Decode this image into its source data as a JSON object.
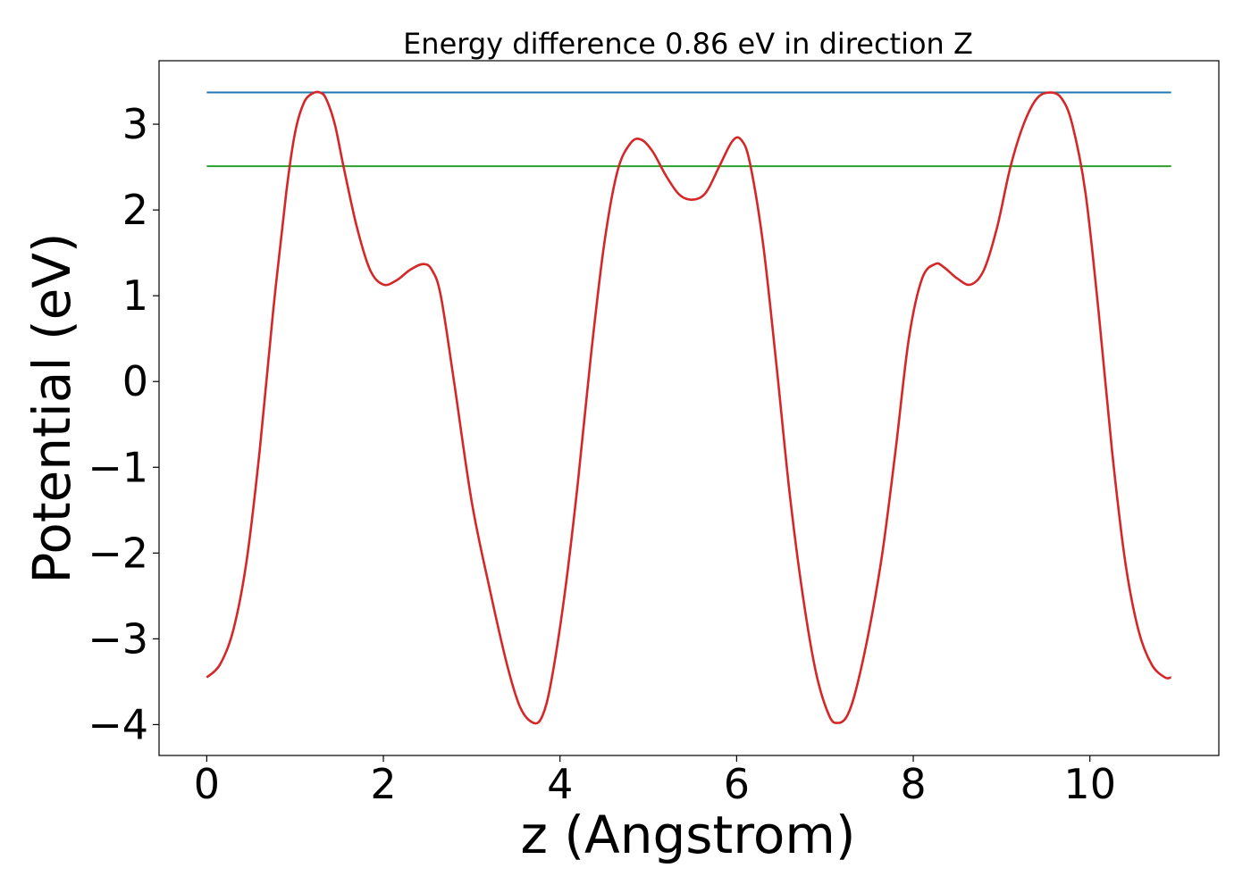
{
  "chart_data": {
    "type": "line",
    "title": "Energy difference 0.86 eV in direction Z",
    "xlabel": "z (Angstrom)",
    "ylabel": "Potential (eV)",
    "xlim": [
      -0.54,
      11.46
    ],
    "ylim": [
      -4.36,
      3.74
    ],
    "xticks": [
      0,
      2,
      4,
      6,
      8,
      10
    ],
    "xtick_labels": [
      "0",
      "2",
      "4",
      "6",
      "8",
      "10"
    ],
    "yticks": [
      -4,
      -3,
      -2,
      -1,
      0,
      1,
      2,
      3
    ],
    "ytick_labels": [
      "−4",
      "−3",
      "−2",
      "−1",
      "0",
      "1",
      "2",
      "3"
    ],
    "grid": false,
    "series": [
      {
        "color": "#d62728",
        "x": [
          0,
          0.15,
          0.3,
          0.45,
          0.6,
          0.75,
          0.9,
          1.0,
          1.1,
          1.2,
          1.28,
          1.35,
          1.45,
          1.55,
          1.7,
          1.85,
          2.0,
          2.15,
          2.3,
          2.45,
          2.55,
          2.65,
          2.8,
          3.0,
          3.2,
          3.4,
          3.55,
          3.7,
          3.8,
          3.9,
          4.05,
          4.2,
          4.35,
          4.5,
          4.65,
          4.8,
          4.92,
          5.05,
          5.2,
          5.35,
          5.5,
          5.65,
          5.8,
          5.95,
          6.05,
          6.15,
          6.3,
          6.45,
          6.6,
          6.75,
          6.9,
          7.05,
          7.15,
          7.25,
          7.35,
          7.5,
          7.65,
          7.8,
          7.95,
          8.1,
          8.25,
          8.35,
          8.5,
          8.65,
          8.8,
          8.95,
          9.1,
          9.25,
          9.4,
          9.55,
          9.68,
          9.8,
          9.95,
          10.1,
          10.25,
          10.4,
          10.55,
          10.7,
          10.85,
          10.92
        ],
        "y": [
          -3.45,
          -3.3,
          -2.9,
          -2.1,
          -0.8,
          0.8,
          2.2,
          2.9,
          3.25,
          3.36,
          3.37,
          3.3,
          3.0,
          2.5,
          1.8,
          1.3,
          1.13,
          1.18,
          1.3,
          1.37,
          1.3,
          1.0,
          0.0,
          -1.4,
          -2.4,
          -3.3,
          -3.8,
          -3.98,
          -3.9,
          -3.5,
          -2.5,
          -1.2,
          0.3,
          1.6,
          2.45,
          2.78,
          2.82,
          2.68,
          2.4,
          2.18,
          2.12,
          2.2,
          2.5,
          2.8,
          2.82,
          2.55,
          1.6,
          0.2,
          -1.3,
          -2.5,
          -3.4,
          -3.9,
          -3.98,
          -3.9,
          -3.6,
          -2.9,
          -2.0,
          -0.8,
          0.5,
          1.2,
          1.37,
          1.33,
          1.2,
          1.13,
          1.3,
          1.8,
          2.5,
          3.0,
          3.3,
          3.37,
          3.3,
          3.0,
          2.2,
          0.8,
          -0.8,
          -2.1,
          -2.9,
          -3.3,
          -3.45,
          -3.45
        ]
      },
      {
        "color": "#1f77b4",
        "x": [
          0,
          10.92
        ],
        "y": [
          3.37,
          3.37
        ]
      },
      {
        "color": "#2ca02c",
        "x": [
          0,
          10.92
        ],
        "y": [
          2.51,
          2.51
        ]
      }
    ]
  }
}
